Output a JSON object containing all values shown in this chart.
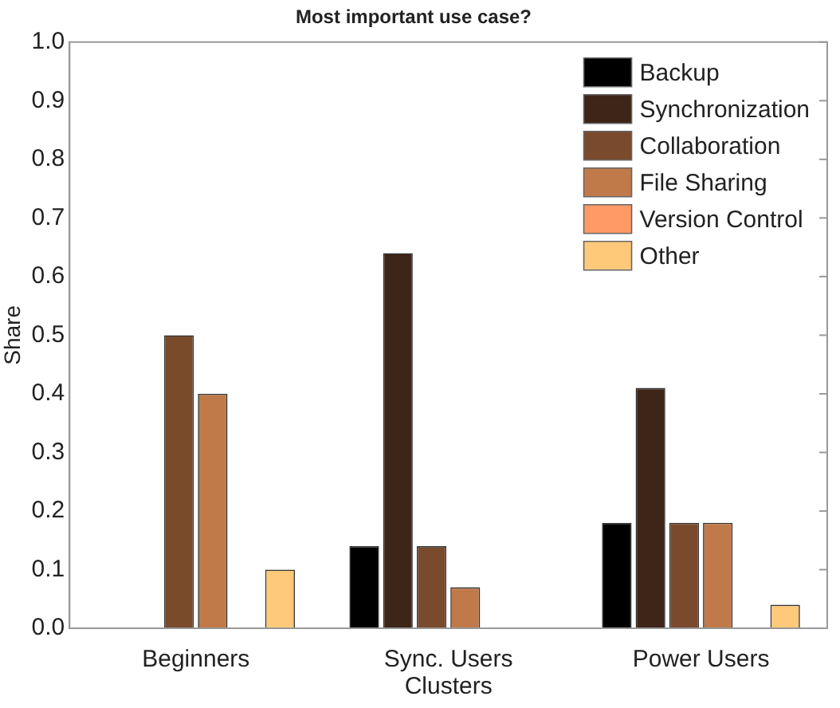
{
  "chart_data": {
    "type": "bar",
    "title": "Most important use case?",
    "xlabel": "Clusters",
    "ylabel": "Share",
    "categories": [
      "Beginners",
      "Sync. Users",
      "Power Users"
    ],
    "series": [
      {
        "name": "Backup",
        "color": "#000000",
        "values": [
          0,
          0.14,
          0.18
        ]
      },
      {
        "name": "Synchronization",
        "color": "#3d2518",
        "values": [
          0,
          0.64,
          0.41
        ]
      },
      {
        "name": "Collaboration",
        "color": "#7a4a2c",
        "values": [
          0.5,
          0.14,
          0.18
        ]
      },
      {
        "name": "File Sharing",
        "color": "#c07a4a",
        "values": [
          0.4,
          0.07,
          0.18
        ]
      },
      {
        "name": "Version Control",
        "color": "#ff9966",
        "values": [
          0,
          0,
          0
        ]
      },
      {
        "name": "Other",
        "color": "#ffc97a",
        "values": [
          0.1,
          0,
          0.04
        ]
      }
    ],
    "ylim": [
      0,
      1
    ],
    "yticks": [
      {
        "value": 0,
        "label": "0.0"
      },
      {
        "value": 0.1,
        "label": "0.1"
      },
      {
        "value": 0.2,
        "label": "0.2"
      },
      {
        "value": 0.3,
        "label": "0.3"
      },
      {
        "value": 0.4,
        "label": "0.4"
      },
      {
        "value": 0.5,
        "label": "0.5"
      },
      {
        "value": 0.6,
        "label": "0.6"
      },
      {
        "value": 0.7,
        "label": "0.7"
      },
      {
        "value": 0.8,
        "label": "0.8"
      },
      {
        "value": 0.9,
        "label": "0.9"
      },
      {
        "value": 1,
        "label": "1.0"
      }
    ],
    "grid": false,
    "legend": "top right"
  }
}
